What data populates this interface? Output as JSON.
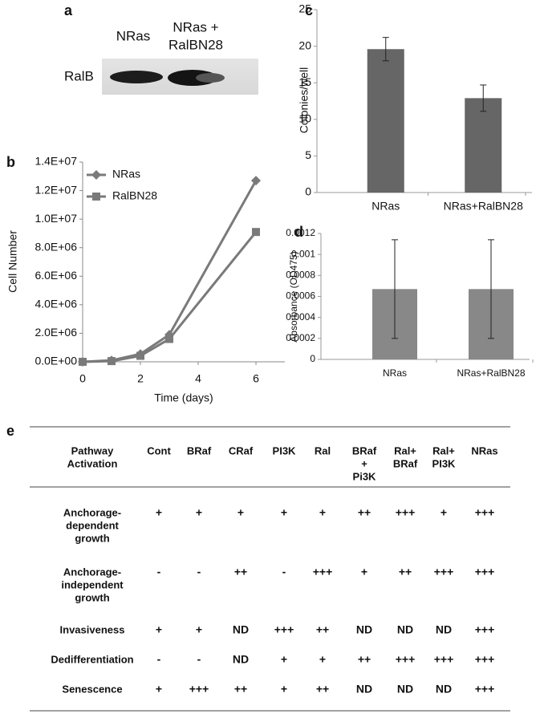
{
  "blot": {
    "label": "a",
    "lanes": [
      [
        "NRas"
      ],
      [
        "NRas +",
        "RalBN28"
      ]
    ],
    "row_label": "RalB"
  },
  "chart_data": [
    {
      "type": "line",
      "label": "b",
      "x_label": "Time (days)",
      "y_label": "Cell Number",
      "x": [
        0,
        1,
        2,
        3,
        6
      ],
      "xlim": [
        0,
        7
      ],
      "xticks": [
        0,
        2,
        4,
        6
      ],
      "ylim": [
        0,
        14000000
      ],
      "yticks": [
        {
          "value": 0,
          "label": "0.0E+00"
        },
        {
          "value": 2000000,
          "label": "2.0E+06"
        },
        {
          "value": 4000000,
          "label": "4.0E+06"
        },
        {
          "value": 6000000,
          "label": "6.0E+06"
        },
        {
          "value": 8000000,
          "label": "8.0E+06"
        },
        {
          "value": 10000000,
          "label": "1.0E+07"
        },
        {
          "value": 12000000,
          "label": "1.2E+07"
        },
        {
          "value": 14000000,
          "label": "1.4E+07"
        }
      ],
      "legend": "upper-left",
      "series": [
        {
          "name": "NRas",
          "color": "#7a7a7a",
          "marker": "diamond",
          "values": [
            0,
            100000,
            550000,
            1900000,
            12700000
          ]
        },
        {
          "name": "RalBN28",
          "color": "#7a7a7a",
          "marker": "square",
          "values": [
            0,
            50000,
            420000,
            1600000,
            9100000
          ]
        }
      ]
    },
    {
      "type": "bar",
      "label": "c",
      "y_label": "Colonies/well",
      "color": "#666666",
      "categories": [
        "NRas",
        "NRas+RalBN28"
      ],
      "values": [
        19.6,
        12.9
      ],
      "errors": [
        1.6,
        1.8
      ],
      "ylim": [
        0,
        25
      ],
      "yticks": [
        0,
        5,
        10,
        15,
        20,
        25
      ]
    },
    {
      "type": "bar",
      "label": "d",
      "y_label": "Absorbance (OD475)",
      "color": "#888888",
      "categories": [
        "NRas",
        "NRas+RalBN28"
      ],
      "values": [
        0.00067,
        0.00067
      ],
      "errors": [
        0.00047,
        0.00047
      ],
      "ylim": [
        0,
        0.0012
      ],
      "yticks": [
        0,
        0.0002,
        0.0004,
        0.0006,
        0.0008,
        0.001,
        0.0012
      ]
    }
  ],
  "table": {
    "label": "e",
    "header": [
      [
        "Pathway",
        "Activation"
      ],
      [
        "Cont"
      ],
      [
        "BRaf"
      ],
      [
        "CRaf"
      ],
      [
        "PI3K"
      ],
      [
        "Ral"
      ],
      [
        "BRaf",
        "+",
        "Pi3K"
      ],
      [
        "Ral+",
        "BRaf"
      ],
      [
        "Ral+",
        "PI3K"
      ],
      [
        "NRas"
      ]
    ],
    "rows": [
      {
        "label": [
          "Anchorage-",
          "dependent",
          "growth"
        ],
        "cells": [
          "+",
          "+",
          "+",
          "+",
          "+",
          "++",
          "+++",
          "+",
          "+++"
        ]
      },
      {
        "label": [
          "Anchorage-",
          "independent",
          "growth"
        ],
        "cells": [
          "-",
          "-",
          "++",
          "-",
          "+++",
          "+",
          "++",
          "+++",
          "+++"
        ]
      },
      {
        "label": [
          "Invasiveness"
        ],
        "cells": [
          "+",
          "+",
          "ND",
          "+++",
          "++",
          "ND",
          "ND",
          "ND",
          "+++"
        ]
      },
      {
        "label": [
          "Dedifferentiation"
        ],
        "cells": [
          "-",
          "-",
          "ND",
          "+",
          "+",
          "++",
          "+++",
          "+++",
          "+++"
        ]
      },
      {
        "label": [
          "Senescence"
        ],
        "cells": [
          "+",
          "+++",
          "++",
          "+",
          "++",
          "ND",
          "ND",
          "ND",
          "+++"
        ]
      }
    ]
  }
}
